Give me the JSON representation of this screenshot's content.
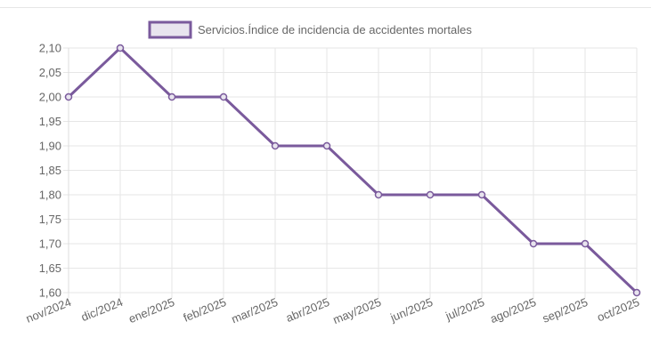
{
  "chart_data": {
    "type": "line",
    "legend": {
      "position": "top",
      "label": "Servicios.Índice de incidencia de accidentes mortales"
    },
    "categories": [
      "nov/2024",
      "dic/2024",
      "ene/2025",
      "feb/2025",
      "mar/2025",
      "abr/2025",
      "may/2025",
      "jun/2025",
      "jul/2025",
      "ago/2025",
      "sep/2025",
      "oct/2025"
    ],
    "series": [
      {
        "name": "Servicios.Índice de incidencia de accidentes mortales",
        "values": [
          2.0,
          2.1,
          2.0,
          2.0,
          1.9,
          1.9,
          1.8,
          1.8,
          1.8,
          1.7,
          1.7,
          1.6
        ],
        "color": "#7a5a9c"
      }
    ],
    "ylim": [
      1.6,
      2.1
    ],
    "yticks": [
      "2,10",
      "2,05",
      "2,00",
      "1,95",
      "1,90",
      "1,85",
      "1,80",
      "1,75",
      "1,70",
      "1,65",
      "1,60"
    ],
    "grid": true,
    "colors": {
      "line": "#7a5a9c",
      "point_fill": "#e8e4ee",
      "legend_fill": "#e8e4ee",
      "grid": "#e6e6e6",
      "text": "#666666"
    }
  }
}
